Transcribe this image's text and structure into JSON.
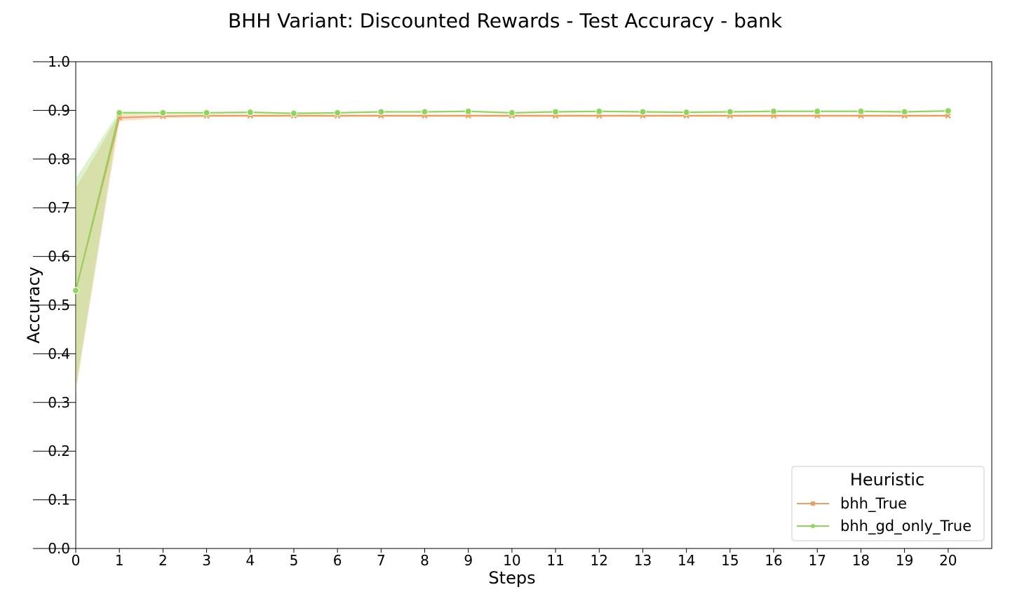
{
  "chart_data": {
    "type": "line",
    "title": "BHH Variant: Discounted Rewards - Test Accuracy - bank",
    "xlabel": "Steps",
    "ylabel": "Accuracy",
    "xlim": [
      0,
      21
    ],
    "ylim": [
      0.0,
      1.0
    ],
    "x": [
      0,
      1,
      2,
      3,
      4,
      5,
      6,
      7,
      8,
      9,
      10,
      11,
      12,
      13,
      14,
      15,
      16,
      17,
      18,
      19,
      20
    ],
    "x_ticks": [
      "0",
      "1",
      "2",
      "3",
      "4",
      "5",
      "6",
      "7",
      "8",
      "9",
      "10",
      "11",
      "12",
      "13",
      "14",
      "15",
      "16",
      "17",
      "18",
      "19",
      "20"
    ],
    "y_ticks": [
      "0.0",
      "0.1",
      "0.2",
      "0.3",
      "0.4",
      "0.5",
      "0.6",
      "0.7",
      "0.8",
      "0.9",
      "1.0"
    ],
    "grid": false,
    "legend": {
      "title": "Heuristic",
      "placement": "lower-right"
    },
    "series": [
      {
        "name": "bhh_True",
        "color": "#e8a060",
        "marker": "x",
        "values": [
          0.53,
          0.885,
          0.888,
          0.889,
          0.889,
          0.889,
          0.889,
          0.889,
          0.889,
          0.889,
          0.889,
          0.889,
          0.889,
          0.889,
          0.889,
          0.889,
          0.889,
          0.889,
          0.889,
          0.889,
          0.889
        ],
        "ci_lower": [
          0.32,
          0.878,
          0.884,
          0.886,
          0.886,
          0.886,
          0.886,
          0.886,
          0.886,
          0.886,
          0.886,
          0.886,
          0.886,
          0.886,
          0.886,
          0.886,
          0.886,
          0.886,
          0.886,
          0.886,
          0.886
        ],
        "ci_upper": [
          0.74,
          0.892,
          0.892,
          0.892,
          0.892,
          0.892,
          0.892,
          0.892,
          0.892,
          0.892,
          0.892,
          0.892,
          0.892,
          0.892,
          0.892,
          0.892,
          0.892,
          0.892,
          0.892,
          0.892,
          0.892
        ]
      },
      {
        "name": "bhh_gd_only_True",
        "color": "#8cd65a",
        "marker": "o",
        "values": [
          0.53,
          0.895,
          0.895,
          0.895,
          0.896,
          0.894,
          0.895,
          0.897,
          0.897,
          0.898,
          0.895,
          0.897,
          0.898,
          0.897,
          0.896,
          0.897,
          0.898,
          0.898,
          0.898,
          0.897,
          0.899
        ],
        "ci_lower": [
          0.33,
          0.892,
          0.893,
          0.893,
          0.894,
          0.892,
          0.893,
          0.895,
          0.895,
          0.896,
          0.893,
          0.895,
          0.896,
          0.895,
          0.894,
          0.895,
          0.896,
          0.896,
          0.896,
          0.895,
          0.897
        ],
        "ci_upper": [
          0.76,
          0.898,
          0.897,
          0.897,
          0.898,
          0.896,
          0.897,
          0.899,
          0.899,
          0.9,
          0.897,
          0.899,
          0.9,
          0.899,
          0.898,
          0.899,
          0.9,
          0.9,
          0.9,
          0.899,
          0.901
        ]
      }
    ]
  }
}
